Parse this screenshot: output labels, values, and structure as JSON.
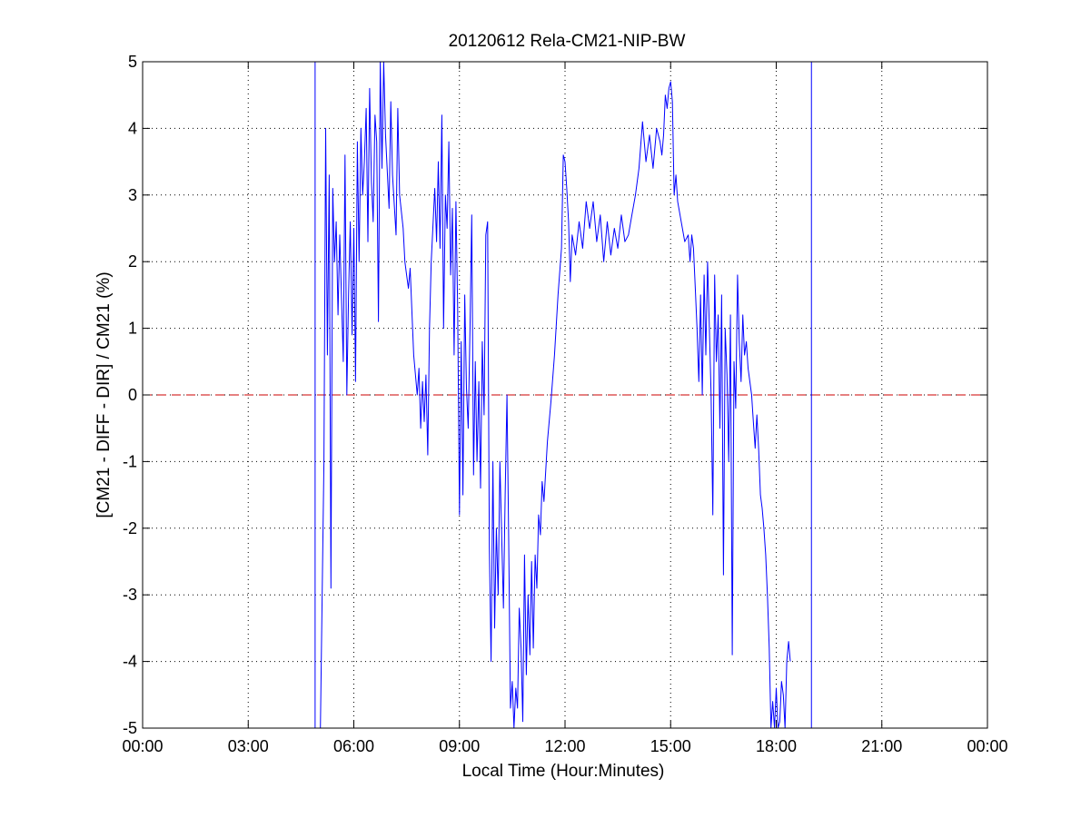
{
  "chart_data": {
    "type": "line",
    "title": "20120612 Rela-CM21-NIP-BW",
    "xlabel": "Local Time (Hour:Minutes)",
    "ylabel": "[CM21 - DIFF - DIR] / CM21 (%)",
    "xlim": [
      0,
      24
    ],
    "ylim": [
      -5,
      5
    ],
    "x_ticks": [
      0,
      3,
      6,
      9,
      12,
      15,
      18,
      21,
      24
    ],
    "x_tick_labels": [
      "00:00",
      "03:00",
      "06:00",
      "09:00",
      "12:00",
      "15:00",
      "18:00",
      "21:00",
      "00:00"
    ],
    "y_ticks": [
      -5,
      -4,
      -3,
      -2,
      -1,
      0,
      1,
      2,
      3,
      4,
      5
    ],
    "y_tick_labels": [
      "-5",
      "-4",
      "-3",
      "-2",
      "-1",
      "0",
      "1",
      "2",
      "3",
      "4",
      "5"
    ],
    "grid": true,
    "reference_line": {
      "y": 0,
      "color": "#cc0000",
      "style": "dashed"
    },
    "vertical_lines": [
      4.9,
      19.0
    ],
    "series": [
      {
        "color": "#0000ff",
        "x_unit": "hours",
        "points": [
          [
            5.05,
            -5
          ],
          [
            5.15,
            -1.0
          ],
          [
            5.2,
            4.0
          ],
          [
            5.25,
            0.6
          ],
          [
            5.3,
            3.3
          ],
          [
            5.35,
            -2.9
          ],
          [
            5.4,
            3.1
          ],
          [
            5.45,
            2.0
          ],
          [
            5.5,
            2.6
          ],
          [
            5.55,
            1.2
          ],
          [
            5.6,
            2.4
          ],
          [
            5.7,
            0.5
          ],
          [
            5.75,
            3.6
          ],
          [
            5.8,
            0.0
          ],
          [
            5.85,
            1.5
          ],
          [
            5.9,
            2.6
          ],
          [
            5.95,
            0.9
          ],
          [
            6.0,
            2.5
          ],
          [
            6.05,
            0.2
          ],
          [
            6.1,
            3.8
          ],
          [
            6.15,
            2.0
          ],
          [
            6.2,
            4.0
          ],
          [
            6.25,
            3.0
          ],
          [
            6.3,
            3.5
          ],
          [
            6.35,
            4.3
          ],
          [
            6.4,
            2.3
          ],
          [
            6.45,
            4.6
          ],
          [
            6.5,
            3.2
          ],
          [
            6.55,
            2.6
          ],
          [
            6.6,
            4.2
          ],
          [
            6.65,
            3.8
          ],
          [
            6.7,
            1.1
          ],
          [
            6.75,
            5.0
          ],
          [
            6.8,
            3.4
          ],
          [
            6.85,
            5.0
          ],
          [
            6.9,
            3.9
          ],
          [
            7.0,
            2.8
          ],
          [
            7.05,
            4.4
          ],
          [
            7.1,
            3.3
          ],
          [
            7.2,
            2.4
          ],
          [
            7.25,
            4.3
          ],
          [
            7.3,
            3.0
          ],
          [
            7.4,
            2.5
          ],
          [
            7.45,
            2.0
          ],
          [
            7.5,
            1.8
          ],
          [
            7.55,
            1.6
          ],
          [
            7.6,
            1.9
          ],
          [
            7.7,
            0.6
          ],
          [
            7.8,
            0.0
          ],
          [
            7.85,
            0.4
          ],
          [
            7.9,
            -0.5
          ],
          [
            7.95,
            0.2
          ],
          [
            8.0,
            -0.4
          ],
          [
            8.05,
            0.3
          ],
          [
            8.1,
            -0.9
          ],
          [
            8.15,
            1.0
          ],
          [
            8.2,
            2.0
          ],
          [
            8.3,
            3.1
          ],
          [
            8.35,
            2.3
          ],
          [
            8.4,
            3.5
          ],
          [
            8.45,
            2.2
          ],
          [
            8.5,
            4.2
          ],
          [
            8.55,
            1.0
          ],
          [
            8.6,
            3.0
          ],
          [
            8.65,
            2.5
          ],
          [
            8.7,
            3.8
          ],
          [
            8.75,
            1.8
          ],
          [
            8.8,
            2.8
          ],
          [
            8.85,
            0.6
          ],
          [
            8.9,
            2.9
          ],
          [
            8.95,
            1.3
          ],
          [
            9.0,
            -1.8
          ],
          [
            9.05,
            0.8
          ],
          [
            9.1,
            -1.5
          ],
          [
            9.15,
            1.5
          ],
          [
            9.2,
            0.1
          ],
          [
            9.25,
            -0.5
          ],
          [
            9.3,
            1.0
          ],
          [
            9.35,
            2.7
          ],
          [
            9.4,
            -1.2
          ],
          [
            9.45,
            0.5
          ],
          [
            9.5,
            -1.0
          ],
          [
            9.55,
            0.2
          ],
          [
            9.6,
            -1.4
          ],
          [
            9.65,
            0.8
          ],
          [
            9.7,
            -0.3
          ],
          [
            9.75,
            2.4
          ],
          [
            9.8,
            2.6
          ],
          [
            9.85,
            -2.3
          ],
          [
            9.9,
            -4.0
          ],
          [
            9.95,
            -1.0
          ],
          [
            10.0,
            -3.5
          ],
          [
            10.05,
            -2.0
          ],
          [
            10.1,
            -3.0
          ],
          [
            10.15,
            -1.0
          ],
          [
            10.25,
            -3.2
          ],
          [
            10.3,
            -1.5
          ],
          [
            10.35,
            0.0
          ],
          [
            10.4,
            -2.2
          ],
          [
            10.45,
            -4.7
          ],
          [
            10.5,
            -4.3
          ],
          [
            10.55,
            -5.0
          ],
          [
            10.6,
            -4.4
          ],
          [
            10.65,
            -4.7
          ],
          [
            10.7,
            -3.2
          ],
          [
            10.75,
            -3.8
          ],
          [
            10.8,
            -4.9
          ],
          [
            10.85,
            -2.4
          ],
          [
            10.9,
            -4.2
          ],
          [
            10.95,
            -3.0
          ],
          [
            11.0,
            -3.9
          ],
          [
            11.05,
            -2.5
          ],
          [
            11.1,
            -3.8
          ],
          [
            11.15,
            -2.4
          ],
          [
            11.2,
            -2.9
          ],
          [
            11.25,
            -1.8
          ],
          [
            11.3,
            -2.1
          ],
          [
            11.35,
            -1.3
          ],
          [
            11.4,
            -1.6
          ],
          [
            11.5,
            -0.7
          ],
          [
            11.6,
            -0.1
          ],
          [
            11.7,
            0.6
          ],
          [
            11.8,
            1.5
          ],
          [
            11.9,
            2.2
          ],
          [
            11.95,
            3.6
          ],
          [
            12.0,
            3.5
          ],
          [
            12.05,
            3.1
          ],
          [
            12.1,
            2.6
          ],
          [
            12.15,
            1.7
          ],
          [
            12.2,
            2.4
          ],
          [
            12.3,
            2.1
          ],
          [
            12.4,
            2.6
          ],
          [
            12.5,
            2.2
          ],
          [
            12.6,
            2.9
          ],
          [
            12.7,
            2.5
          ],
          [
            12.8,
            2.9
          ],
          [
            12.9,
            2.3
          ],
          [
            13.0,
            2.7
          ],
          [
            13.1,
            2.0
          ],
          [
            13.2,
            2.6
          ],
          [
            13.3,
            2.1
          ],
          [
            13.4,
            2.5
          ],
          [
            13.5,
            2.2
          ],
          [
            13.6,
            2.7
          ],
          [
            13.7,
            2.3
          ],
          [
            13.8,
            2.4
          ],
          [
            13.9,
            2.7
          ],
          [
            14.0,
            3.0
          ],
          [
            14.1,
            3.4
          ],
          [
            14.2,
            4.1
          ],
          [
            14.3,
            3.5
          ],
          [
            14.4,
            3.9
          ],
          [
            14.5,
            3.4
          ],
          [
            14.6,
            4.0
          ],
          [
            14.7,
            3.8
          ],
          [
            14.75,
            3.6
          ],
          [
            14.8,
            3.9
          ],
          [
            14.85,
            4.5
          ],
          [
            14.9,
            4.3
          ],
          [
            14.95,
            4.6
          ],
          [
            15.0,
            4.7
          ],
          [
            15.05,
            4.4
          ],
          [
            15.1,
            3.0
          ],
          [
            15.15,
            3.3
          ],
          [
            15.2,
            2.9
          ],
          [
            15.3,
            2.6
          ],
          [
            15.4,
            2.3
          ],
          [
            15.5,
            2.4
          ],
          [
            15.55,
            2.0
          ],
          [
            15.6,
            2.4
          ],
          [
            15.65,
            2.2
          ],
          [
            15.7,
            1.6
          ],
          [
            15.75,
            1.0
          ],
          [
            15.8,
            0.2
          ],
          [
            15.85,
            1.5
          ],
          [
            15.9,
            0.0
          ],
          [
            15.95,
            1.8
          ],
          [
            16.0,
            0.6
          ],
          [
            16.05,
            2.0
          ],
          [
            16.1,
            1.0
          ],
          [
            16.15,
            0.0
          ],
          [
            16.2,
            -1.8
          ],
          [
            16.25,
            1.8
          ],
          [
            16.3,
            0.5
          ],
          [
            16.35,
            1.2
          ],
          [
            16.4,
            -0.5
          ],
          [
            16.45,
            1.5
          ],
          [
            16.5,
            -2.7
          ],
          [
            16.55,
            1.0
          ],
          [
            16.6,
            0.3
          ],
          [
            16.65,
            -1.0
          ],
          [
            16.7,
            1.2
          ],
          [
            16.75,
            -3.9
          ],
          [
            16.8,
            0.5
          ],
          [
            16.85,
            -0.2
          ],
          [
            16.9,
            1.8
          ],
          [
            16.95,
            0.8
          ],
          [
            17.0,
            0.2
          ],
          [
            17.05,
            1.2
          ],
          [
            17.1,
            0.6
          ],
          [
            17.15,
            0.8
          ],
          [
            17.2,
            0.4
          ],
          [
            17.3,
            0.0
          ],
          [
            17.35,
            -0.4
          ],
          [
            17.4,
            -0.8
          ],
          [
            17.45,
            -0.3
          ],
          [
            17.5,
            -0.8
          ],
          [
            17.55,
            -1.5
          ],
          [
            17.6,
            -1.7
          ],
          [
            17.65,
            -2.0
          ],
          [
            17.7,
            -2.4
          ],
          [
            17.75,
            -3.0
          ],
          [
            17.8,
            -3.8
          ],
          [
            17.85,
            -5.0
          ],
          [
            17.9,
            -4.6
          ],
          [
            17.95,
            -5.0
          ],
          [
            18.0,
            -4.4
          ],
          [
            18.05,
            -5.0
          ],
          [
            18.1,
            -4.9
          ],
          [
            18.15,
            -4.3
          ],
          [
            18.2,
            -4.5
          ],
          [
            18.25,
            -5.0
          ],
          [
            18.3,
            -4.0
          ],
          [
            18.35,
            -3.7
          ],
          [
            18.4,
            -4.0
          ]
        ]
      }
    ]
  }
}
